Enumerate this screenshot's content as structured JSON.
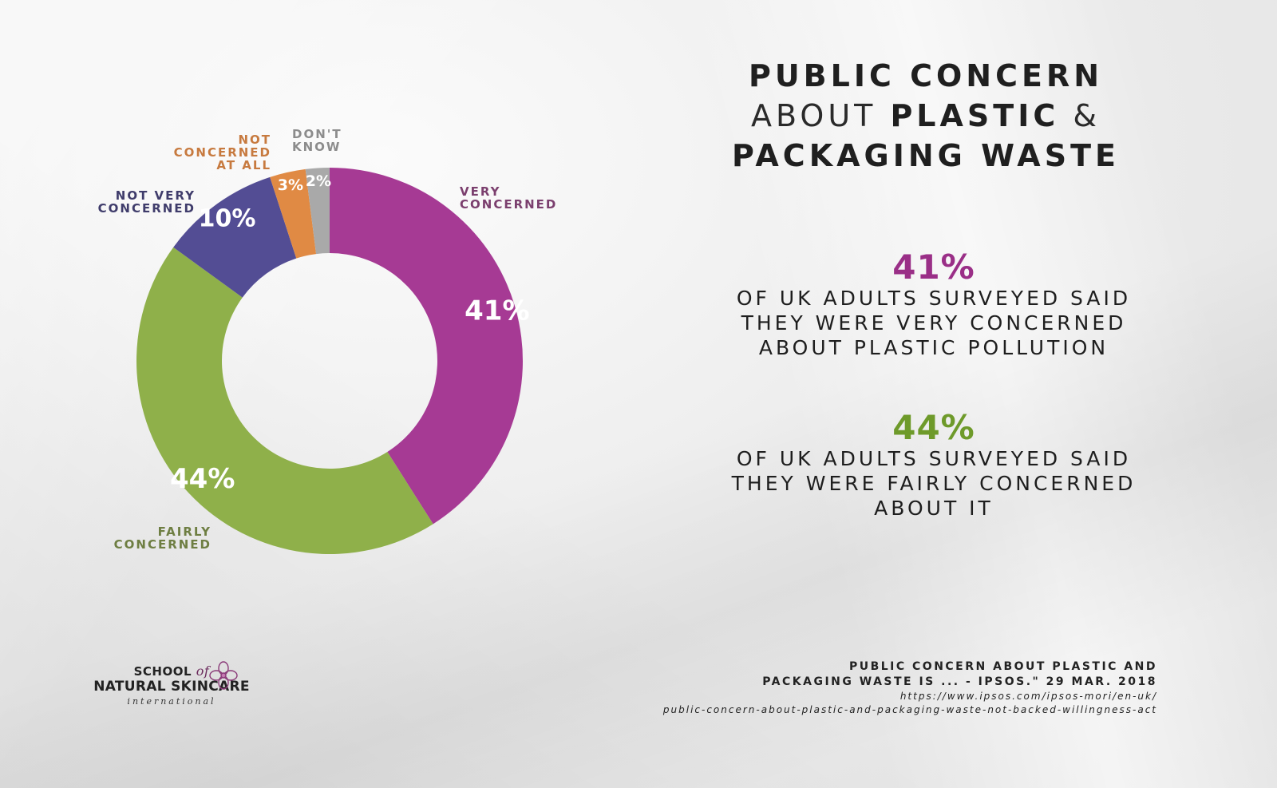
{
  "chart_data": {
    "type": "donut",
    "title": "PUBLIC CONCERN ABOUT PLASTIC & PACKAGING WASTE",
    "categories": [
      "VERY CONCERNED",
      "FAIRLY CONCERNED",
      "NOT VERY CONCERNED",
      "NOT CONCERNED AT ALL",
      "DON'T KNOW"
    ],
    "values": [
      41,
      44,
      10,
      3,
      2
    ],
    "value_labels": [
      "41%",
      "44%",
      "10%",
      "3%",
      "2%"
    ],
    "labels": [
      {
        "text": "VERY\nCONCERNED",
        "color": "#7b3f6e"
      },
      {
        "text": "FAIRLY\nCONCERNED",
        "color": "#6e7e42"
      },
      {
        "text": "NOT VERY\nCONCERNED",
        "color": "#3f3c6b"
      },
      {
        "text": "NOT\nCONCERNED\nAT ALL",
        "color": "#c77a3f"
      },
      {
        "text": "DON'T\nKNOW",
        "color": "#8c8c8c"
      }
    ],
    "colors": [
      "#a63a94",
      "#8fb04a",
      "#534d94",
      "#e08a44",
      "#a9a9a9"
    ],
    "legend": "labels outside slices"
  },
  "title": {
    "line1": "PUBLIC CONCERN",
    "line2_light": "ABOUT ",
    "line2_bold": "PLASTIC",
    "line2_amp": " &",
    "line3": "PACKAGING WASTE"
  },
  "stats": [
    {
      "value": "41%",
      "text": "OF UK ADULTS SURVEYED SAID\nTHEY WERE VERY CONCERNED\nABOUT PLASTIC POLLUTION",
      "color": "#9a2f87"
    },
    {
      "value": "44%",
      "text": "OF UK ADULTS SURVEYED SAID\nTHEY WERE FAIRLY CONCERNED\nABOUT IT",
      "color": "#6e9a2a"
    }
  ],
  "source": {
    "title": "PUBLIC CONCERN ABOUT PLASTIC AND\nPACKAGING WASTE IS ... - IPSOS.\" 29 MAR. 2018",
    "url": "https://www.ipsos.com/ipsos-mori/en-uk/\npublic-concern-about-plastic-and-packaging-waste-not-backed-willingness-act"
  },
  "logo": {
    "line1": "SCHOOL",
    "of": "of",
    "line2": "NATURAL SKINCARE",
    "line3": "international"
  }
}
